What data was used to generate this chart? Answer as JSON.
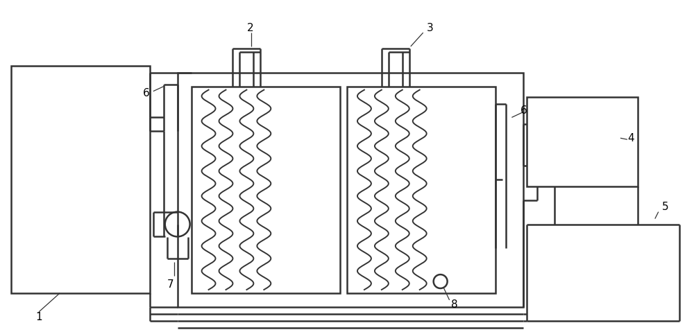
{
  "bg_color": "#ffffff",
  "line_color": "#333333",
  "line_width": 1.8,
  "fig_width": 10.0,
  "fig_height": 4.79
}
